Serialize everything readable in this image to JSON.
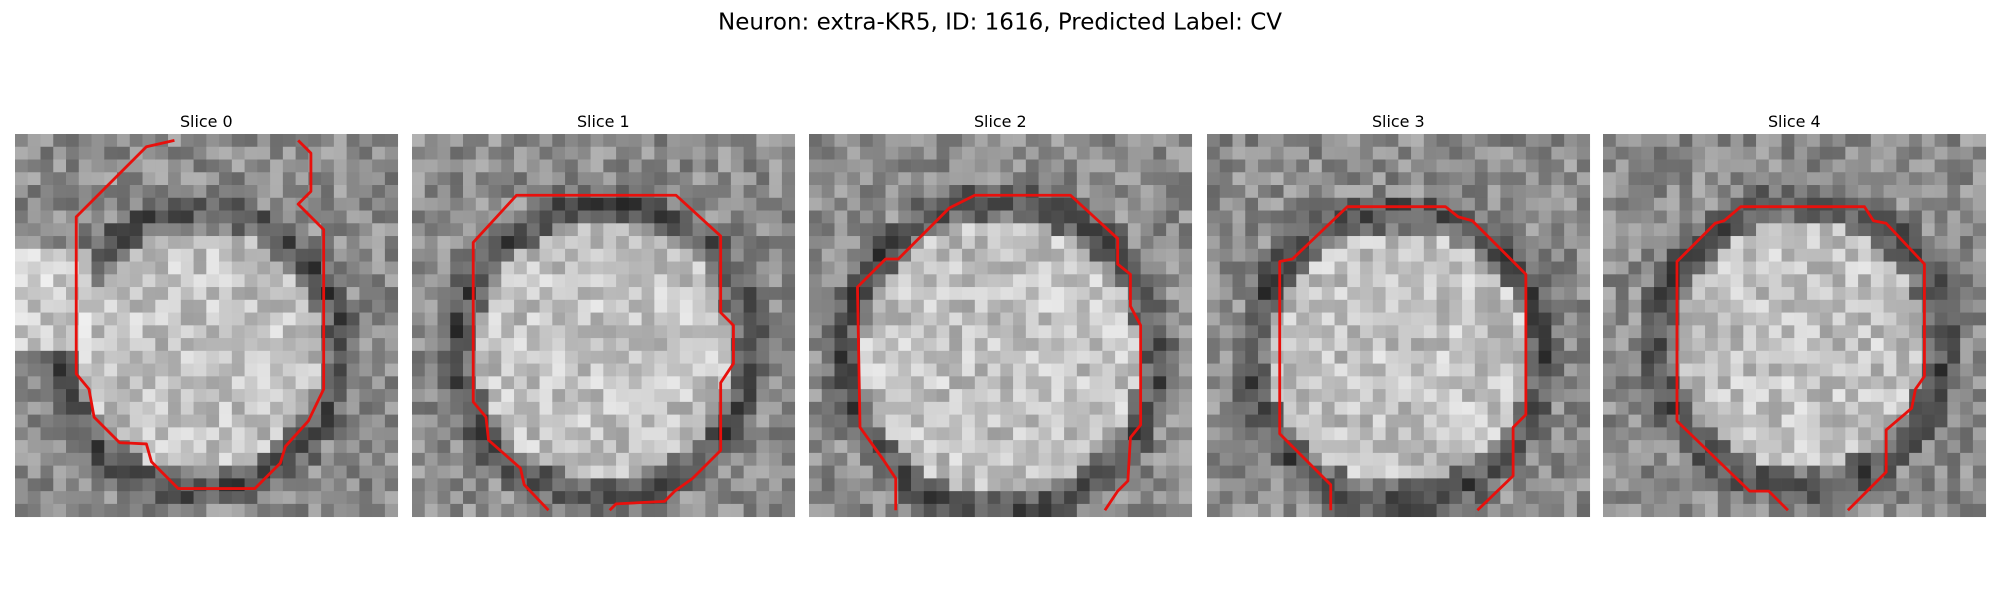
{
  "figure": {
    "title": "Neuron: extra-KR5, ID: 1616, Predicted Label: CV",
    "panels": [
      {
        "label": "Slice 0"
      },
      {
        "label": "Slice 1"
      },
      {
        "label": "Slice 2"
      },
      {
        "label": "Slice 3"
      },
      {
        "label": "Slice 4"
      }
    ]
  }
}
